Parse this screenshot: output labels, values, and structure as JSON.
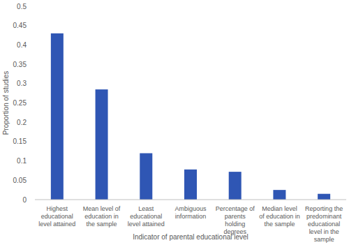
{
  "chart_data": {
    "type": "bar",
    "x_label": "Indicator of parental educational level",
    "y_label": "Proportion of studies",
    "categories": [
      "Highest educational level attained",
      "Mean level of education in the sample",
      "Least educational level attained",
      "Ambiguous information",
      "Percentage of parents holding degrees",
      "Median level of education in the sample",
      "Reporting the predominant educational level in the sample"
    ],
    "values": [
      0.43,
      0.285,
      0.12,
      0.078,
      0.072,
      0.025,
      0.015
    ],
    "color": "#2f56b4",
    "ylim": [
      0,
      0.5
    ],
    "yticks": [
      0,
      0.05,
      0.1,
      0.15,
      0.2,
      0.25,
      0.3,
      0.35,
      0.4,
      0.45,
      0.5
    ],
    "grid": false
  }
}
